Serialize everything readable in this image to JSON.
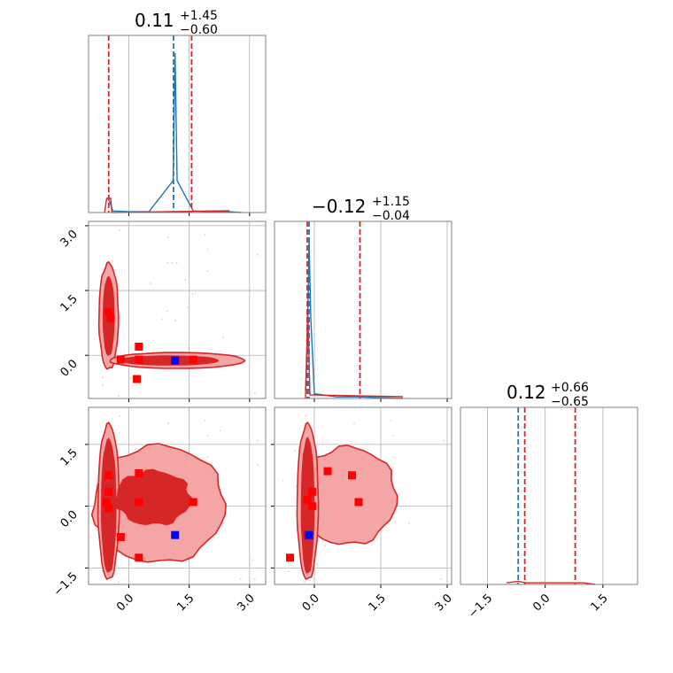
{
  "colors": {
    "red": "#d62728",
    "blue": "#1f77b4",
    "fill_light": "#f4a6a6",
    "fill_mid": "#e06a6a",
    "grid": "#b0b0b0",
    "marker_blue": "#0000ff",
    "marker_red": "#ff0000"
  },
  "chart_data": [
    {
      "type": "histogram",
      "panel": "p1-marginal",
      "title": {
        "value": "0.11",
        "plus": "+1.45",
        "minus": "−0.60"
      },
      "xlim": [
        -1.0,
        3.4
      ],
      "grid": true,
      "peak_x": 1.15,
      "quantiles_red": [
        -0.5,
        1.56
      ],
      "median_blue": 1.11,
      "hist_series": [
        {
          "x": [
            -0.5,
            -0.45,
            -0.4,
            0.0,
            0.5,
            1.1,
            1.15,
            1.2,
            1.6,
            2.0,
            2.5,
            2.8
          ],
          "y": [
            0.08,
            0.05,
            0.01,
            0.005,
            0.005,
            0.2,
            1.0,
            0.2,
            0.01,
            0.005,
            0.005,
            0.0
          ]
        }
      ]
    },
    {
      "type": "histogram",
      "panel": "p2-marginal",
      "title": {
        "value": "−0.12",
        "plus": "+1.15",
        "minus": "−0.04"
      },
      "xlim": [
        -0.9,
        3.1
      ],
      "grid": true,
      "quantiles_red": [
        -0.16,
        1.03
      ],
      "median_blue": -0.12,
      "hist_series": [
        {
          "x": [
            -0.2,
            -0.16,
            -0.12,
            -0.08,
            0.0,
            0.5,
            1.0,
            1.5,
            2.0
          ],
          "y": [
            0.05,
            0.3,
            1.0,
            0.5,
            0.03,
            0.01,
            0.01,
            0.005,
            0.0
          ]
        }
      ]
    },
    {
      "type": "histogram",
      "panel": "p3-marginal",
      "title": {
        "value": "0.12",
        "plus": "+0.66",
        "minus": "−0.65"
      },
      "xlim": [
        -2.2,
        2.4
      ],
      "grid": true,
      "quantiles_red": [
        -0.53,
        0.78
      ],
      "median_blue": -0.7,
      "hist_series": [
        {
          "x": [
            -1.0,
            -0.7,
            -0.5,
            0.0,
            0.5,
            1.0,
            1.3
          ],
          "y": [
            0.01,
            0.02,
            0.01,
            0.01,
            0.01,
            0.01,
            0.0
          ]
        }
      ]
    },
    {
      "type": "contour-scatter",
      "panel": "p21",
      "xlim": [
        -1.0,
        3.4
      ],
      "ylim": [
        -1.0,
        3.1
      ],
      "grid": true,
      "x_ticks": [
        "0.0",
        "1.5",
        "3.0"
      ],
      "y_ticks": [
        "0.0",
        "1.5",
        "3.0"
      ],
      "y_tick_values": [
        0.0,
        1.5,
        3.0
      ],
      "red_markers": [
        [
          -0.5,
          1.0
        ],
        [
          -0.45,
          0.85
        ],
        [
          0.25,
          0.2
        ],
        [
          0.25,
          -0.1
        ],
        [
          0.2,
          -0.55
        ],
        [
          -0.2,
          -0.1
        ],
        [
          1.6,
          -0.1
        ]
      ],
      "blue_markers": [
        [
          1.15,
          -0.12
        ]
      ]
    },
    {
      "type": "contour-scatter",
      "panel": "p31",
      "xlim": [
        -1.0,
        3.4
      ],
      "ylim": [
        -1.9,
        2.4
      ],
      "grid": true,
      "y_ticks": [
        "−1.5",
        "0.0",
        "1.5"
      ],
      "y_tick_values": [
        -1.5,
        0.0,
        1.5
      ],
      "red_markers": [
        [
          -0.5,
          0.75
        ],
        [
          -0.5,
          0.35
        ],
        [
          -0.55,
          0.1
        ],
        [
          -0.5,
          -0.05
        ],
        [
          0.25,
          0.8
        ],
        [
          0.25,
          0.1
        ],
        [
          0.25,
          -1.25
        ],
        [
          -0.2,
          -0.75
        ],
        [
          1.6,
          0.1
        ]
      ],
      "blue_markers": [
        [
          1.15,
          -0.7
        ]
      ]
    },
    {
      "type": "contour-scatter",
      "panel": "p32",
      "xlim": [
        -0.9,
        3.1
      ],
      "ylim": [
        -1.9,
        2.4
      ],
      "grid": true,
      "red_markers": [
        [
          -0.55,
          -1.25
        ],
        [
          -0.16,
          0.15
        ],
        [
          -0.05,
          0.35
        ],
        [
          0.3,
          0.85
        ],
        [
          0.85,
          0.75
        ],
        [
          1.0,
          0.1
        ],
        [
          -0.05,
          0.0
        ],
        [
          -0.15,
          -0.7
        ]
      ],
      "blue_markers": [
        [
          -0.12,
          -0.7
        ]
      ]
    }
  ],
  "axes": {
    "bottom_x1_ticks": [
      "0.0",
      "1.5",
      "3.0"
    ],
    "bottom_x2_ticks": [
      "0.0",
      "1.5",
      "3.0"
    ],
    "bottom_x3_ticks": [
      "−1.5",
      "0.0",
      "1.5"
    ],
    "x1_tick_values": [
      0.0,
      1.5,
      3.0
    ],
    "x2_tick_values": [
      0.0,
      1.5,
      3.0
    ],
    "x3_tick_values": [
      -1.5,
      0.0,
      1.5
    ]
  }
}
